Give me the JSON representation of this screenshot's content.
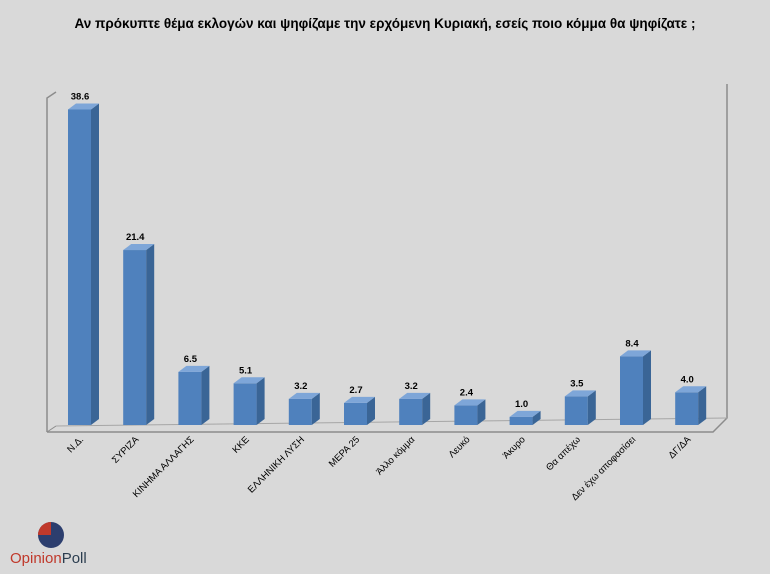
{
  "chart_data": {
    "type": "bar",
    "title": "Αν πρόκυπτε θέμα εκλογών και ψηφίζαμε την ερχόμενη Κυριακή, εσείς ποιο κόμμα θα ψηφίζατε ;",
    "categories": [
      "Ν.Δ.",
      "ΣΥΡΙΖΑ",
      "ΚΙΝΗΜΑ ΑΛΛΑΓΗΣ",
      "ΚΚΕ",
      "ΕΛΛΗΝΙΚΗ ΛΥΣΗ",
      "ΜΕΡΑ 25",
      "Άλλο κόμμα",
      "Λευκό",
      "Άκυρο",
      "Θα απέχω",
      "Δεν έχω αποφασίσει",
      "ΔΓ/ΔΑ"
    ],
    "value_labels": [
      "38.6",
      "21.4",
      "6.5",
      "5.1",
      "3.2",
      "2.7",
      "3.2",
      "2.4",
      "1.0",
      "3.5",
      "8.4",
      "4.0"
    ],
    "values": [
      38.6,
      21.4,
      6.5,
      5.1,
      3.2,
      2.7,
      3.2,
      2.4,
      1.0,
      3.5,
      8.4,
      4.0
    ],
    "xlabel": "",
    "ylabel": "",
    "ylim": [
      0,
      40
    ],
    "grid": false,
    "bar_color": "#4f81bd"
  },
  "logo": {
    "part1": "Opinion",
    "part2": "Poll"
  }
}
